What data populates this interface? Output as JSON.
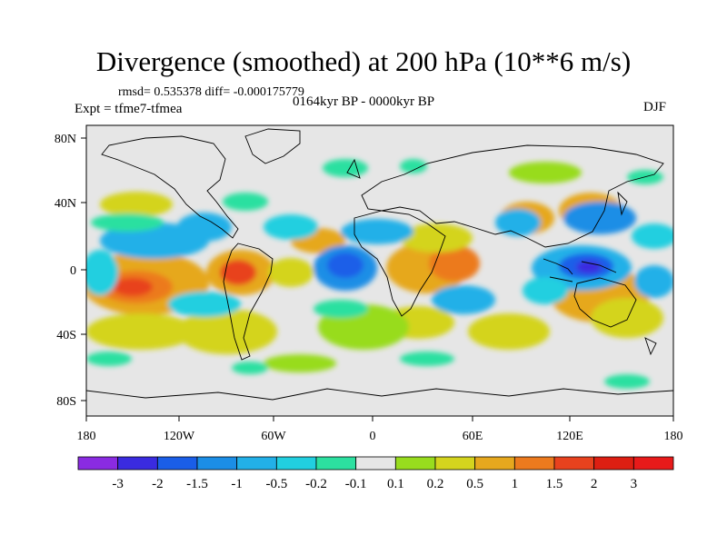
{
  "header": {
    "title": "Divergence (smoothed) at 200 hPa (10**6 m/s)",
    "stats": "rmsd= 0.535378  diff= -0.000175779",
    "experiment": "Expt = tfme7-tfmea",
    "period": "0164kyr BP - 0000kyr BP",
    "season": "DJF"
  },
  "map": {
    "projection": "cylindrical equidistant",
    "background_color": "#e6e6e6",
    "lat_ticks": [
      "80N",
      "40N",
      "0",
      "40S",
      "80S"
    ],
    "lon_ticks": [
      "180",
      "120W",
      "60W",
      "0",
      "60E",
      "120E",
      "180"
    ]
  },
  "colorbar": {
    "labels": [
      "-3",
      "-2",
      "-1.5",
      "-1",
      "-0.5",
      "-0.2",
      "-0.1",
      "0.1",
      "0.2",
      "0.5",
      "1",
      "1.5",
      "2",
      "3"
    ],
    "colors": [
      "#8a2be2",
      "#3a2be0",
      "#1a5ee8",
      "#1b8ee6",
      "#22b0e8",
      "#21cfe0",
      "#2ce0a0",
      "#e6e6e6",
      "#98dc1e",
      "#d4d41e",
      "#e6a81e",
      "#ec7a1e",
      "#e8421e",
      "#dd1f12",
      "#e81a1a"
    ]
  }
}
